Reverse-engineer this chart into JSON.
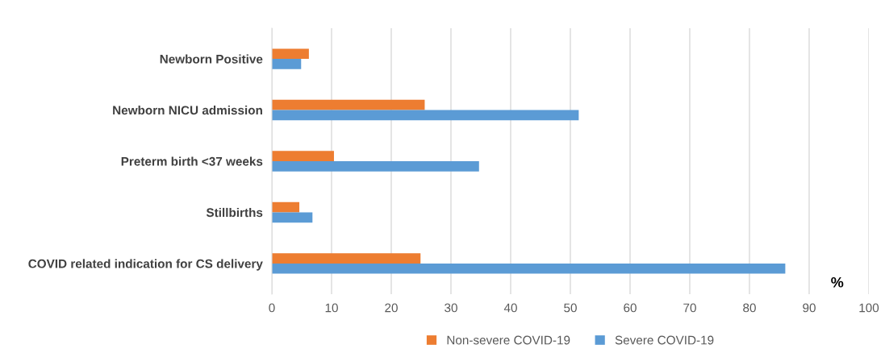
{
  "chart_data": {
    "type": "bar",
    "orientation": "horizontal",
    "xlabel": "%",
    "categories": [
      "Newborn Positive",
      "Newborn NICU admission",
      "Preterm birth <37 weeks",
      "Stillbirths",
      "COVID related indication for CS delivery"
    ],
    "series": [
      {
        "name": "Non-severe COVID-19",
        "color": "#ed7d31",
        "values": [
          6.2,
          25.6,
          10.4,
          4.6,
          24.9
        ]
      },
      {
        "name": "Severe COVID-19",
        "color": "#5b9bd5",
        "values": [
          4.9,
          51.4,
          34.7,
          6.8,
          86.0
        ]
      }
    ],
    "xlim": [
      0,
      100
    ],
    "xticks": [
      0,
      10,
      20,
      30,
      40,
      50,
      60,
      70,
      80,
      90,
      100
    ],
    "grid": "x",
    "legend": "bottom"
  }
}
